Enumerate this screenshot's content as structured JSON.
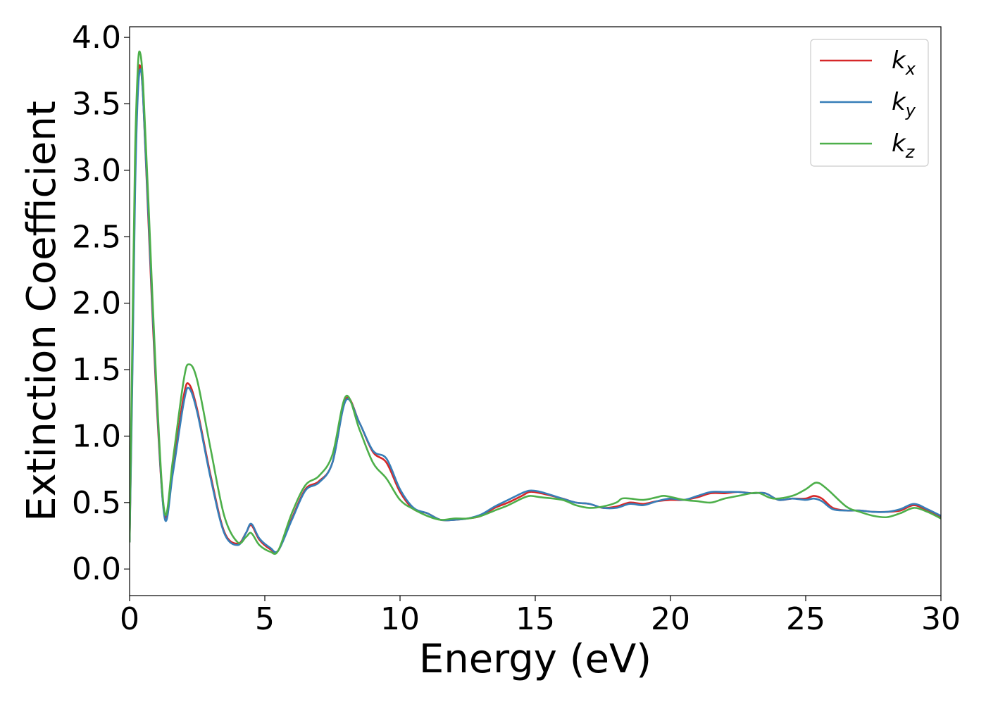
{
  "chart_data": {
    "type": "line",
    "xlabel": "Energy (eV)",
    "ylabel": "Extinction Coefficient",
    "xlim": [
      0,
      30
    ],
    "ylim": [
      -0.2,
      4.08
    ],
    "x_ticks": [
      "0",
      "5",
      "10",
      "15",
      "20",
      "25",
      "30"
    ],
    "x_tick_values": [
      0,
      5,
      10,
      15,
      20,
      25,
      30
    ],
    "y_ticks": [
      "0.0",
      "0.5",
      "1.0",
      "1.5",
      "2.0",
      "2.5",
      "3.0",
      "3.5",
      "4.0"
    ],
    "y_tick_values": [
      0.0,
      0.5,
      1.0,
      1.5,
      2.0,
      2.5,
      3.0,
      3.5,
      4.0
    ],
    "grid": false,
    "legend_position": "top-right",
    "series": [
      {
        "name": "k_x",
        "label_base": "k",
        "label_sub": "x",
        "color": "#d62728",
        "x": [
          0,
          0.1,
          0.2,
          0.3,
          0.38,
          0.5,
          0.7,
          1.0,
          1.3,
          1.6,
          2.0,
          2.2,
          2.5,
          3.0,
          3.5,
          4.0,
          4.3,
          4.5,
          4.8,
          5.2,
          5.5,
          6.0,
          6.5,
          7.0,
          7.5,
          8.0,
          8.5,
          9.0,
          9.5,
          10.0,
          10.5,
          11.0,
          11.5,
          12.0,
          12.5,
          13.0,
          13.5,
          14.0,
          14.5,
          14.8,
          15.2,
          16.0,
          16.5,
          17.0,
          17.5,
          18.0,
          18.5,
          19.0,
          19.5,
          20.0,
          20.5,
          21.0,
          21.5,
          22.0,
          22.5,
          23.0,
          23.5,
          24.0,
          24.5,
          25.0,
          25.3,
          25.6,
          26.0,
          26.5,
          27.0,
          27.5,
          28.0,
          28.5,
          29.0,
          29.5,
          30.0
        ],
        "values": [
          0.2,
          1.5,
          2.9,
          3.6,
          3.79,
          3.55,
          2.6,
          1.25,
          0.4,
          0.75,
          1.3,
          1.39,
          1.2,
          0.7,
          0.28,
          0.19,
          0.27,
          0.33,
          0.22,
          0.15,
          0.14,
          0.38,
          0.6,
          0.66,
          0.8,
          1.28,
          1.1,
          0.88,
          0.8,
          0.58,
          0.45,
          0.42,
          0.37,
          0.37,
          0.38,
          0.4,
          0.46,
          0.5,
          0.55,
          0.58,
          0.57,
          0.53,
          0.5,
          0.49,
          0.46,
          0.47,
          0.5,
          0.49,
          0.51,
          0.52,
          0.52,
          0.54,
          0.57,
          0.57,
          0.58,
          0.57,
          0.57,
          0.52,
          0.53,
          0.53,
          0.55,
          0.53,
          0.46,
          0.44,
          0.44,
          0.43,
          0.43,
          0.44,
          0.48,
          0.44,
          0.39
        ]
      },
      {
        "name": "k_y",
        "label_base": "k",
        "label_sub": "y",
        "color": "#377eb8",
        "x": [
          0,
          0.1,
          0.2,
          0.3,
          0.4,
          0.5,
          0.7,
          1.0,
          1.3,
          1.6,
          2.0,
          2.2,
          2.5,
          3.0,
          3.5,
          4.0,
          4.3,
          4.5,
          4.8,
          5.2,
          5.5,
          6.0,
          6.5,
          7.0,
          7.5,
          8.0,
          8.5,
          9.0,
          9.5,
          10.0,
          10.5,
          11.0,
          11.5,
          12.0,
          12.5,
          13.0,
          13.5,
          14.0,
          14.5,
          14.8,
          15.2,
          16.0,
          16.5,
          17.0,
          17.5,
          18.0,
          18.5,
          19.0,
          19.5,
          20.0,
          20.5,
          21.0,
          21.5,
          22.0,
          22.5,
          23.0,
          23.5,
          24.0,
          24.5,
          25.0,
          25.3,
          25.6,
          26.0,
          26.5,
          27.0,
          27.5,
          28.0,
          28.5,
          29.0,
          29.5,
          30.0
        ],
        "values": [
          0.2,
          1.4,
          2.8,
          3.55,
          3.76,
          3.55,
          2.65,
          1.3,
          0.38,
          0.72,
          1.25,
          1.36,
          1.18,
          0.68,
          0.27,
          0.18,
          0.27,
          0.34,
          0.23,
          0.16,
          0.14,
          0.37,
          0.59,
          0.65,
          0.8,
          1.27,
          1.1,
          0.89,
          0.83,
          0.6,
          0.46,
          0.42,
          0.37,
          0.37,
          0.38,
          0.41,
          0.47,
          0.52,
          0.57,
          0.59,
          0.58,
          0.53,
          0.5,
          0.49,
          0.46,
          0.46,
          0.49,
          0.48,
          0.51,
          0.53,
          0.52,
          0.55,
          0.58,
          0.58,
          0.58,
          0.57,
          0.57,
          0.52,
          0.53,
          0.52,
          0.53,
          0.51,
          0.45,
          0.44,
          0.44,
          0.43,
          0.43,
          0.45,
          0.49,
          0.45,
          0.4
        ]
      },
      {
        "name": "k_z",
        "label_base": "k",
        "label_sub": "z",
        "color": "#4daf4a",
        "x": [
          0,
          0.1,
          0.2,
          0.3,
          0.38,
          0.5,
          0.7,
          1.0,
          1.3,
          1.6,
          2.0,
          2.2,
          2.5,
          3.0,
          3.5,
          4.0,
          4.3,
          4.5,
          4.8,
          5.2,
          5.5,
          6.0,
          6.5,
          7.0,
          7.5,
          8.0,
          8.5,
          9.0,
          9.5,
          10.0,
          10.5,
          11.0,
          11.5,
          12.0,
          12.5,
          13.0,
          13.5,
          14.0,
          14.5,
          14.8,
          15.2,
          16.0,
          16.5,
          17.0,
          17.5,
          18.0,
          18.2,
          18.5,
          19.0,
          19.5,
          19.8,
          20.5,
          21.0,
          21.5,
          22.0,
          22.5,
          23.0,
          23.3,
          23.8,
          24.5,
          25.0,
          25.4,
          25.8,
          26.5,
          27.0,
          27.5,
          28.0,
          28.5,
          29.0,
          29.5,
          30.0
        ],
        "values": [
          0.2,
          1.7,
          3.1,
          3.75,
          3.89,
          3.65,
          2.75,
          1.35,
          0.42,
          0.82,
          1.42,
          1.54,
          1.42,
          0.9,
          0.4,
          0.2,
          0.24,
          0.27,
          0.18,
          0.13,
          0.14,
          0.42,
          0.63,
          0.7,
          0.86,
          1.3,
          1.05,
          0.8,
          0.68,
          0.52,
          0.45,
          0.4,
          0.37,
          0.38,
          0.38,
          0.4,
          0.44,
          0.48,
          0.53,
          0.55,
          0.54,
          0.52,
          0.48,
          0.46,
          0.47,
          0.5,
          0.53,
          0.53,
          0.52,
          0.54,
          0.55,
          0.52,
          0.51,
          0.5,
          0.53,
          0.55,
          0.57,
          0.57,
          0.53,
          0.55,
          0.6,
          0.65,
          0.6,
          0.47,
          0.43,
          0.4,
          0.39,
          0.42,
          0.46,
          0.43,
          0.38
        ]
      }
    ]
  }
}
